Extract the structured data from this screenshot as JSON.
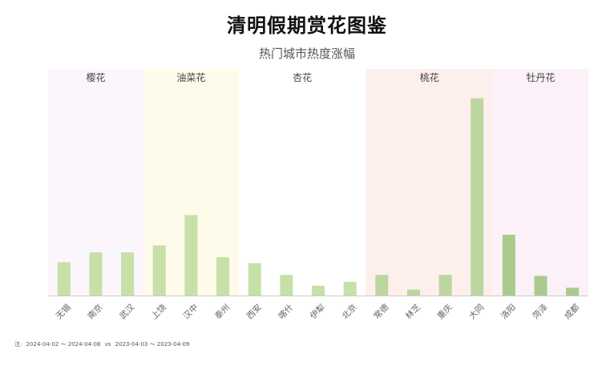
{
  "header": {
    "title": "清明假期赏花图鉴",
    "subtitle": "热门城市热度涨幅"
  },
  "note": {
    "prefix": "注:",
    "range_current": "2024-04-02 ～ 2024-04-08",
    "vs": "vs",
    "range_previous": "2023-04-03 ～ 2023-04-09"
  },
  "colors": {
    "bar_light": "#c6e0a8",
    "bar_dark": "#a9cc8e",
    "axis": "#cccccc",
    "tick_label": "#666666",
    "group_label": "#444444"
  },
  "chart_data": {
    "type": "bar",
    "title": "清明假期赏花图鉴",
    "subtitle": "热门城市热度涨幅",
    "yaxis_visible": false,
    "grid": false,
    "ylim": [
      0,
      100
    ],
    "groups": [
      {
        "label": "樱花",
        "color": "#fbf6fc",
        "start": 0,
        "end": 2
      },
      {
        "label": "油菜花",
        "color": "#fefbea",
        "start": 3,
        "end": 5
      },
      {
        "label": "杏花",
        "color": "#ffffff",
        "start": 6,
        "end": 9
      },
      {
        "label": "桃花",
        "color": "#fdefec",
        "start": 10,
        "end": 13
      },
      {
        "label": "牡丹花",
        "color": "#fcf1f8",
        "start": 14,
        "end": 16
      }
    ],
    "categories": [
      "无锡",
      "南京",
      "武汉",
      "上饶",
      "汉中",
      "泰州",
      "西安",
      "喀什",
      "伊犁",
      "北京",
      "常德",
      "林芝",
      "重庆",
      "大同",
      "洛阳",
      "菏泽",
      "成都"
    ],
    "values": [
      17,
      22,
      22,
      25.5,
      41,
      19.5,
      16.5,
      10.5,
      5,
      7,
      10.5,
      3,
      10.5,
      100.5,
      31,
      10,
      4
    ],
    "bar_colors": [
      "#c6e0a8",
      "#c6e0a8",
      "#c6e0a8",
      "#c6e0a8",
      "#c6e0a8",
      "#c6e0a8",
      "#c6e0a8",
      "#c6e0a8",
      "#c6e0a8",
      "#c6e0a8",
      "#bcd69f",
      "#bcd69f",
      "#bcd69f",
      "#bcd69f",
      "#a9cc8e",
      "#a9cc8e",
      "#a9cc8e"
    ]
  }
}
